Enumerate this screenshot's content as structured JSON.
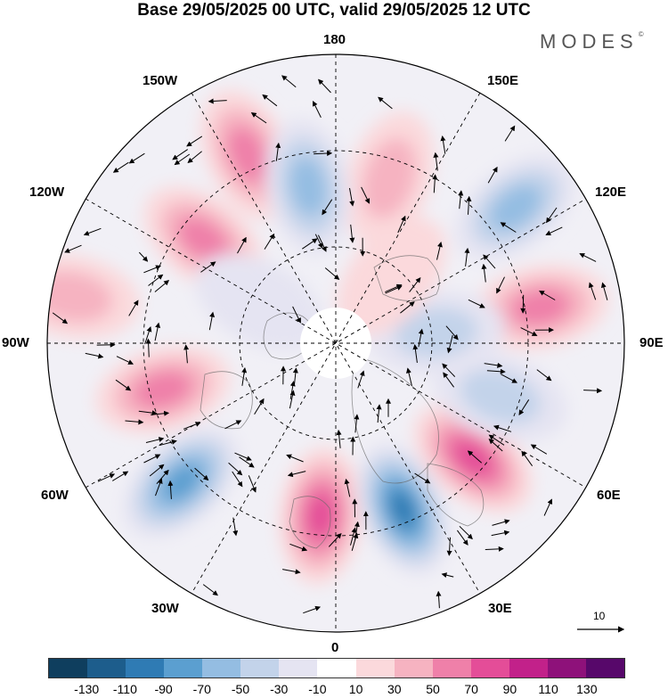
{
  "title": "Base 29/05/2025 00 UTC, valid 29/05/2025 12 UTC",
  "logo": "MODES",
  "logo_mark": "©",
  "longitude_labels": {
    "top": "180",
    "bottom": "0",
    "left": "90W",
    "right": "90E",
    "upper_left": "150W",
    "upper_right": "150E",
    "mid_left_top": "120W",
    "mid_right_top": "120E",
    "mid_left_bottom": "60W",
    "mid_right_bottom": "60E",
    "lower_left": "30W",
    "lower_right": "30E"
  },
  "vector_scale_label": "10",
  "colorbar": {
    "colors": [
      "#0f3e5e",
      "#1d5d8c",
      "#2f7bb4",
      "#5b9fd0",
      "#94bde2",
      "#c3d3ea",
      "#e5e4f2",
      "#ffffff",
      "#fbd9dc",
      "#f6b3c1",
      "#ef80a9",
      "#e44d98",
      "#c2218a",
      "#8e117a",
      "#57086a"
    ],
    "ticks": [
      "-130",
      "-110",
      "-90",
      "-70",
      "-50",
      "-30",
      "-10",
      "10",
      "30",
      "50",
      "70",
      "90",
      "110",
      "130"
    ]
  },
  "anomaly_centers": [
    {
      "lon": -155,
      "r": 0.72,
      "value": 70
    },
    {
      "lon": -128,
      "r": 0.58,
      "value": 60
    },
    {
      "lon": -100,
      "r": 0.93,
      "value": 50
    },
    {
      "lon": -75,
      "r": 0.62,
      "value": 70
    },
    {
      "lon": -48,
      "r": 0.72,
      "value": -80
    },
    {
      "lon": -5,
      "r": 0.6,
      "value": 90
    },
    {
      "lon": 22,
      "r": 0.62,
      "value": -110
    },
    {
      "lon": 50,
      "r": 0.62,
      "value": 80
    },
    {
      "lon": 72,
      "r": 0.6,
      "value": -40
    },
    {
      "lon": 100,
      "r": 0.72,
      "value": 70
    },
    {
      "lon": 127,
      "r": 0.78,
      "value": -70
    },
    {
      "lon": 162,
      "r": 0.6,
      "value": 50
    },
    {
      "lon": -170,
      "r": 0.55,
      "value": -60
    },
    {
      "lon": 96,
      "r": 0.35,
      "value": -50
    },
    {
      "lon": -118,
      "r": 0.3,
      "value": -30
    },
    {
      "lon": 140,
      "r": 0.3,
      "value": 30
    }
  ]
}
